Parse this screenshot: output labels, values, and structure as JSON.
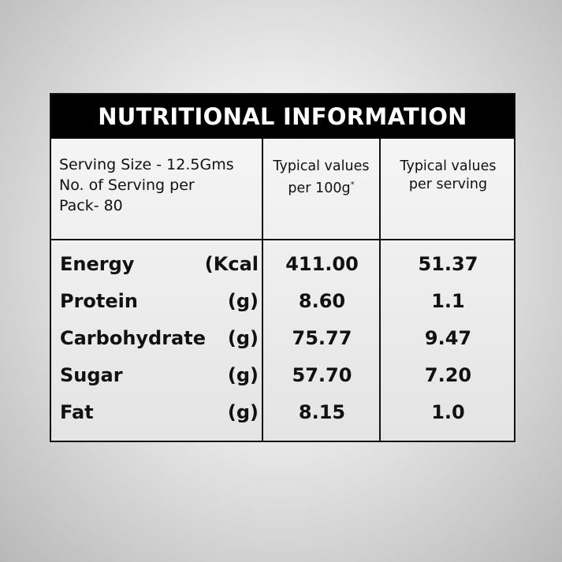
{
  "title": "NUTRITIONAL INFORMATION",
  "serving": {
    "line1": "Serving Size - 12.5Gms",
    "line2": "No. of Serving per",
    "line3": "Pack- 80"
  },
  "columns": {
    "per_100g_line1": "Typical values",
    "per_100g_line2": "per 100g",
    "per_100g_mark": "*",
    "per_serving_line1": "Typical values",
    "per_serving_line2": "per serving"
  },
  "nutrients": [
    {
      "name": "Energy",
      "unit": "(Kcal",
      "per_100g": "411.00",
      "per_serving": "51.37"
    },
    {
      "name": "Protein",
      "unit": "(g)",
      "per_100g": "8.60",
      "per_serving": "1.1"
    },
    {
      "name": "Carbohydrate",
      "unit": "(g)",
      "per_100g": "75.77",
      "per_serving": "9.47"
    },
    {
      "name": "Sugar",
      "unit": "(g)",
      "per_100g": "57.70",
      "per_serving": "7.20"
    },
    {
      "name": "Fat",
      "unit": "(g)",
      "per_100g": "8.15",
      "per_serving": "1.0"
    }
  ]
}
